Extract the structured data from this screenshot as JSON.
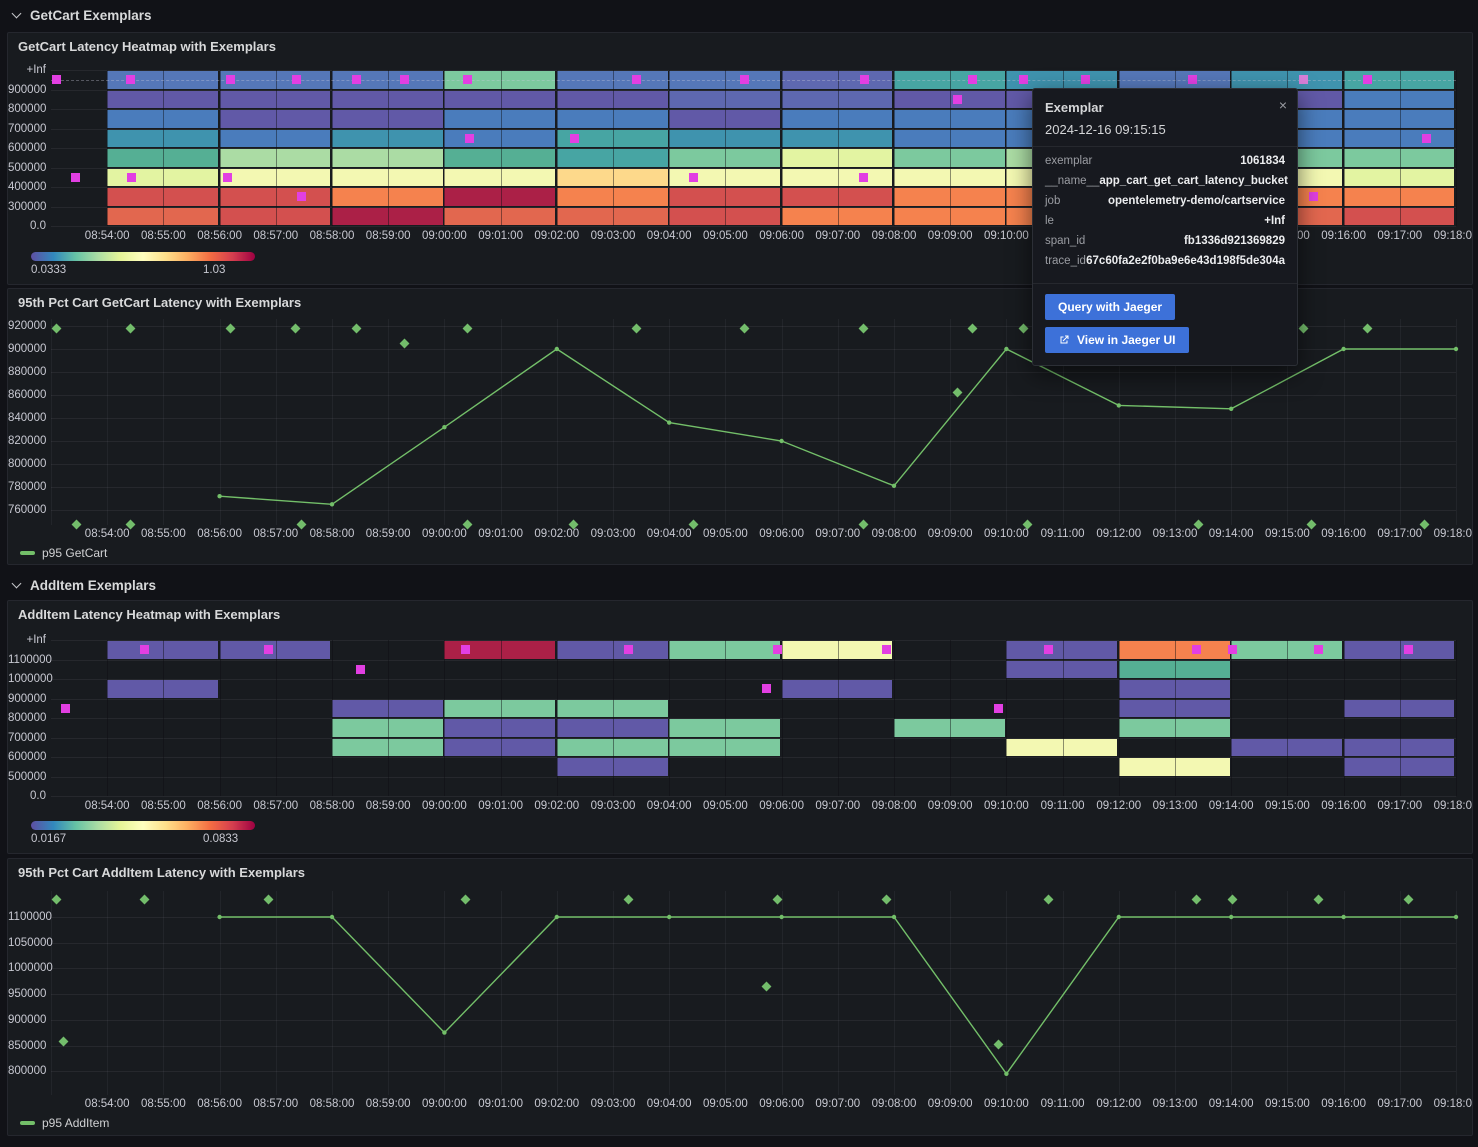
{
  "sections": [
    {
      "label": "GetCart Exemplars"
    },
    {
      "label": "AddItem Exemplars"
    }
  ],
  "colors": {
    "page_bg": "#111217",
    "panel_bg": "#181b1f",
    "border": "#25272e",
    "accent_green": "#73bf69",
    "exemplar_magenta": "#e23fe2",
    "exemplar_highlight": "#d77fd8",
    "button_blue": "#3d71d9",
    "text_primary": "#d8d9da",
    "text_axis": "#c8c9d2"
  },
  "palette": {
    "p": "#6159a7",
    "bp": "#5e68b0",
    "b": "#4a7cbc",
    "sb": "#5577b8",
    "tb": "#3f93ae",
    "t": "#47a5a3",
    "tg": "#55af94",
    "g": "#7cc99e",
    "lg": "#abdca4",
    "yg": "#e3f4a2",
    "y": "#f3f8b2",
    "pe": "#fdd98b",
    "o": "#f5824e",
    "ro": "#e2674f",
    "r": "#d3504f",
    "c": "#ab2047"
  },
  "colorbar_gradient": [
    "#5e4fa2",
    "#3288bd",
    "#66c2a5",
    "#abdda4",
    "#e6f598",
    "#ffffbf",
    "#fee08b",
    "#fdae61",
    "#f46d43",
    "#d53e4f",
    "#9e0142"
  ],
  "time_ticks": [
    "08:54:00",
    "08:55:00",
    "08:56:00",
    "08:57:00",
    "08:58:00",
    "08:59:00",
    "09:00:00",
    "09:01:00",
    "09:02:00",
    "09:03:00",
    "09:04:00",
    "09:05:00",
    "09:06:00",
    "09:07:00",
    "09:08:00",
    "09:09:00",
    "09:10:00",
    "09:11:00",
    "09:12:00",
    "09:13:00",
    "09:14:00",
    "09:15:00",
    "09:16:00",
    "09:17:00",
    "09:18:00"
  ],
  "chart_data": [
    {
      "type": "heatmap",
      "title": "GetCart Latency Heatmap with Exemplars",
      "x_start": "08:54:00",
      "col_minutes": 2,
      "y_buckets": [
        "+Inf",
        "900000",
        "800000",
        "700000",
        "600000",
        "500000",
        "400000",
        "300000",
        "0.0"
      ],
      "grid": [
        [
          "sb",
          "p",
          "b",
          "tb",
          "tg",
          "yg",
          "r",
          "ro"
        ],
        [
          "sb",
          "p",
          "p",
          "b",
          "lg",
          "y",
          "r",
          "r"
        ],
        [
          "sb",
          "p",
          "p",
          "tb",
          "lg",
          "y",
          "o",
          "c"
        ],
        [
          "g",
          "p",
          "b",
          "b",
          "tg",
          "y",
          "c",
          "ro"
        ],
        [
          "sb",
          "p",
          "b",
          "t",
          "t",
          "pe",
          "o",
          "ro"
        ],
        [
          "sb",
          "bp",
          "p",
          "tb",
          "g",
          "y",
          "r",
          "r"
        ],
        [
          "bp",
          "bp",
          "b",
          "tb",
          "yg",
          "y",
          "r",
          "o"
        ],
        [
          "t",
          "p",
          "b",
          "b",
          "g",
          "y",
          "o",
          "o"
        ],
        [
          "tb",
          "p",
          "b",
          "b",
          "lg",
          "y",
          "o",
          "o"
        ],
        [
          "sb",
          "p",
          "b",
          "b",
          "g",
          "y",
          "o",
          "ro"
        ],
        [
          "tb",
          "p",
          "b",
          "b",
          "g",
          "y",
          "o",
          "ro"
        ],
        [
          "t",
          "b",
          "b",
          "b",
          "g",
          "yg",
          "o",
          "r"
        ]
      ],
      "dashed_row": 0,
      "exemplar_markers": {
        "0": [
          "08:53:06",
          "08:54:25",
          "08:56:12",
          "08:57:22",
          "08:58:26",
          "08:59:17",
          "09:00:25",
          "09:03:25",
          "09:05:20",
          "09:07:28",
          "09:09:24",
          "09:10:18",
          "09:11:24",
          "09:13:19",
          "09:15:17*",
          "09:16:26"
        ],
        "1": [
          "09:09:08"
        ],
        "3": [
          "09:00:27",
          "09:02:19",
          "09:17:29"
        ],
        "5": [
          "08:53:26",
          "08:54:26",
          "08:56:08",
          "09:04:26",
          "09:07:27"
        ],
        "6": [
          "08:57:27",
          "09:15:28"
        ]
      },
      "colorbar": {
        "min": "0.0333",
        "max": "1.03"
      }
    },
    {
      "type": "line",
      "title": "95th Pct Cart GetCart Latency with Exemplars",
      "ylim": [
        760000,
        920000
      ],
      "y_ticks": [
        "920000",
        "900000",
        "880000",
        "860000",
        "840000",
        "820000",
        "800000",
        "780000",
        "760000"
      ],
      "series": [
        {
          "name": "p95 GetCart",
          "x": [
            "08:56:00",
            "08:58:00",
            "09:00:00",
            "09:02:00",
            "09:04:00",
            "09:06:00",
            "09:08:00",
            "09:10:00",
            "09:12:00",
            "09:14:00",
            "09:16:00",
            "09:18:00"
          ],
          "y": [
            772000,
            765000,
            832000,
            900000,
            836000,
            820000,
            781000,
            900000,
            851000,
            848000,
            900000,
            900000
          ]
        }
      ],
      "exemplars": [
        {
          "t": "08:53:06",
          "v": 918000
        },
        {
          "t": "08:54:25",
          "v": 918000
        },
        {
          "t": "08:56:12",
          "v": 918000
        },
        {
          "t": "08:57:21",
          "v": 918000
        },
        {
          "t": "08:58:26",
          "v": 918000
        },
        {
          "t": "09:00:25",
          "v": 918000
        },
        {
          "t": "09:03:25",
          "v": 918000
        },
        {
          "t": "09:05:20",
          "v": 918000
        },
        {
          "t": "09:07:27",
          "v": 918000
        },
        {
          "t": "09:09:24",
          "v": 918000
        },
        {
          "t": "09:10:18",
          "v": 918000
        },
        {
          "t": "09:15:17",
          "v": 918000
        },
        {
          "t": "09:16:26",
          "v": 918000
        },
        {
          "t": "08:59:17",
          "v": 905000
        },
        {
          "t": "09:09:08",
          "v": 862000
        },
        {
          "t": "08:53:27",
          "v": 747000
        },
        {
          "t": "08:54:25",
          "v": 747000
        },
        {
          "t": "08:57:27",
          "v": 747000
        },
        {
          "t": "09:00:25",
          "v": 747000
        },
        {
          "t": "09:02:18",
          "v": 747000
        },
        {
          "t": "09:04:26",
          "v": 747000
        },
        {
          "t": "09:07:27",
          "v": 747000
        },
        {
          "t": "09:10:23",
          "v": 747000
        },
        {
          "t": "09:13:25",
          "v": 747000
        },
        {
          "t": "09:15:26",
          "v": 747000
        },
        {
          "t": "09:17:26",
          "v": 747000
        }
      ]
    },
    {
      "type": "heatmap",
      "title": "AddItem Latency Heatmap with Exemplars",
      "x_start": "08:54:00",
      "col_minutes": 2,
      "y_buckets": [
        "+Inf",
        "1100000",
        "1000000",
        "900000",
        "800000",
        "700000",
        "600000",
        "500000",
        "0.0"
      ],
      "grid": [
        [
          "p",
          null,
          "p",
          null,
          null,
          null,
          null,
          null
        ],
        [
          "p",
          null,
          null,
          null,
          null,
          null,
          null,
          null
        ],
        [
          null,
          null,
          null,
          "p",
          "g",
          "g",
          null,
          null
        ],
        [
          "c",
          null,
          null,
          "g",
          "p",
          "p",
          null,
          null
        ],
        [
          "p",
          null,
          null,
          "g",
          "p",
          "g",
          "p",
          null
        ],
        [
          "g",
          null,
          null,
          null,
          "g",
          "g",
          null,
          null
        ],
        [
          "y",
          null,
          "p",
          null,
          null,
          null,
          null,
          null
        ],
        [
          null,
          null,
          null,
          null,
          "g",
          null,
          null,
          null
        ],
        [
          "p",
          "p",
          null,
          null,
          null,
          "y",
          null,
          null
        ],
        [
          "o",
          "tg",
          "p",
          "p",
          "g",
          null,
          "y",
          null
        ],
        [
          "g",
          null,
          null,
          null,
          null,
          "p",
          null,
          null
        ],
        [
          "p",
          null,
          null,
          "p",
          null,
          "p",
          "p",
          null
        ]
      ],
      "dashed_row": null,
      "exemplar_markers": {
        "0": [
          "08:54:40",
          "08:56:52",
          "09:00:23",
          "09:03:17",
          "09:05:56",
          "09:07:52",
          "09:10:45",
          "09:13:23",
          "09:14:01",
          "09:15:33",
          "09:17:09"
        ],
        "1": [
          "08:58:30"
        ],
        "2": [
          "09:05:44"
        ],
        "3": [
          "08:53:15",
          "09:09:52"
        ]
      },
      "colorbar": {
        "min": "0.0167",
        "max": "0.0833"
      }
    },
    {
      "type": "line",
      "title": "95th Pct Cart AddItem Latency with Exemplars",
      "ylim": [
        800000,
        1100000
      ],
      "y_ticks": [
        "1100000",
        "1050000",
        "1000000",
        "950000",
        "900000",
        "850000",
        "800000"
      ],
      "series": [
        {
          "name": "p95 AddItem",
          "x": [
            "08:56:00",
            "08:58:00",
            "09:00:00",
            "09:02:00",
            "09:04:00",
            "09:06:00",
            "09:08:00",
            "09:10:00",
            "09:12:00",
            "09:14:00",
            "09:16:00",
            "09:18:00"
          ],
          "y": [
            1100000,
            1100000,
            875000,
            1100000,
            1100000,
            1100000,
            1100000,
            795000,
            1100000,
            1100000,
            1100000,
            1100000
          ]
        }
      ],
      "exemplars": [
        {
          "t": "08:53:06",
          "v": 1135000
        },
        {
          "t": "08:54:40",
          "v": 1135000
        },
        {
          "t": "08:56:52",
          "v": 1135000
        },
        {
          "t": "09:00:23",
          "v": 1135000
        },
        {
          "t": "09:03:17",
          "v": 1135000
        },
        {
          "t": "09:05:56",
          "v": 1135000
        },
        {
          "t": "09:07:52",
          "v": 1135000
        },
        {
          "t": "09:10:45",
          "v": 1135000
        },
        {
          "t": "09:13:23",
          "v": 1135000
        },
        {
          "t": "09:14:01",
          "v": 1135000
        },
        {
          "t": "09:15:33",
          "v": 1135000
        },
        {
          "t": "09:17:09",
          "v": 1135000
        },
        {
          "t": "08:53:13",
          "v": 858000
        },
        {
          "t": "09:05:44",
          "v": 965000
        },
        {
          "t": "09:09:52",
          "v": 852000
        }
      ]
    }
  ],
  "tooltip": {
    "title": "Exemplar",
    "timestamp": "2024-12-16 09:15:15",
    "close_label": "×",
    "fields": [
      {
        "label": "exemplar",
        "value": "1061834"
      },
      {
        "label": "__name__",
        "value": "app_cart_get_cart_latency_bucket"
      },
      {
        "label": "job",
        "value": "opentelemetry-demo/cartservice"
      },
      {
        "label": "le",
        "value": "+Inf"
      },
      {
        "label": "span_id",
        "value": "fb1336d921369829"
      },
      {
        "label": "trace_id",
        "value": "67c60fa2e2f0ba9e6e43d198f5de304a"
      }
    ],
    "buttons": [
      {
        "label": "Query with Jaeger",
        "icon": null
      },
      {
        "label": "View in Jaeger UI",
        "icon": "external-link-icon"
      }
    ]
  }
}
